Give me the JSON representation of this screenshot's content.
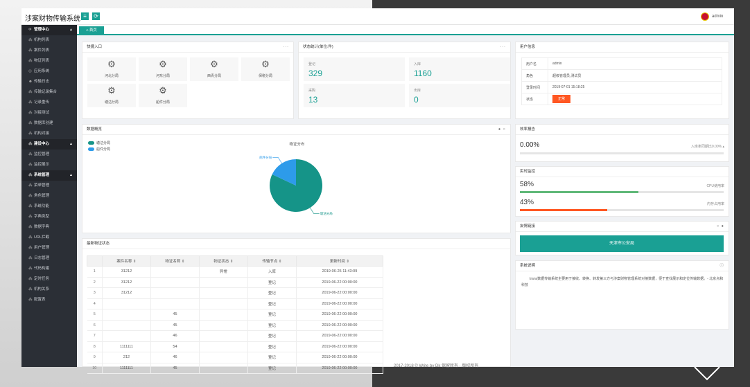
{
  "app": {
    "title": "涉案财物传输系统",
    "user": "admin"
  },
  "topbar": {
    "menu_icon": "≡",
    "refresh_icon": "⟳"
  },
  "sidebar": {
    "items": [
      {
        "label": "管理中心",
        "group": true,
        "icon": "✈"
      },
      {
        "label": "机构列表",
        "icon": "⁂"
      },
      {
        "label": "案件列表",
        "icon": "⁂"
      },
      {
        "label": "物证列表",
        "icon": "⁂"
      },
      {
        "label": "应用系统",
        "icon": "◎"
      },
      {
        "label": "传输日志",
        "icon": "☻"
      },
      {
        "label": "传输记录集合",
        "icon": "⁂"
      },
      {
        "label": "记录重传",
        "icon": "⁂"
      },
      {
        "label": "对接测试",
        "icon": "⁂"
      },
      {
        "label": "数据库创建",
        "icon": "⁂"
      },
      {
        "label": "机构对接",
        "icon": "⁂"
      },
      {
        "label": "建设中心",
        "group": true,
        "icon": "⁂"
      },
      {
        "label": "监控管理",
        "icon": "⁂"
      },
      {
        "label": "监控展示",
        "icon": "⁂"
      },
      {
        "label": "系统管理",
        "group": true,
        "icon": "⁂"
      },
      {
        "label": "菜单管理",
        "icon": "⁂"
      },
      {
        "label": "角色管理",
        "icon": "⁂"
      },
      {
        "label": "系统功能",
        "icon": "⁂"
      },
      {
        "label": "字典类型",
        "icon": "⁂"
      },
      {
        "label": "数据字典",
        "icon": "⁂"
      },
      {
        "label": "URL拦截",
        "icon": "⁂"
      },
      {
        "label": "用户管理",
        "icon": "⁂"
      },
      {
        "label": "日志管理",
        "icon": "⁂"
      },
      {
        "label": "代码构建",
        "icon": "⁂"
      },
      {
        "label": "定时任务",
        "icon": "⁂"
      },
      {
        "label": "机构关系",
        "icon": "⁂"
      },
      {
        "label": "配置表",
        "icon": "⁂"
      }
    ]
  },
  "tabs": [
    {
      "label": "首页",
      "icon": "⌂"
    }
  ],
  "quick": {
    "title": "快捷入口",
    "items": [
      {
        "label": "河北分局"
      },
      {
        "label": "河东分局"
      },
      {
        "label": "西青分局"
      },
      {
        "label": "保税分局"
      },
      {
        "label": "塘沽分局"
      },
      {
        "label": "船件分局"
      }
    ]
  },
  "stats": {
    "title": "状态统计(单位:件)",
    "items": [
      {
        "label": "登记",
        "value": "329"
      },
      {
        "label": "入库",
        "value": "1160"
      },
      {
        "label": "采购",
        "value": "13"
      },
      {
        "label": "出库",
        "value": "0"
      }
    ]
  },
  "userinfo": {
    "title": "用户信息",
    "rows": [
      {
        "k": "用户名",
        "v": "admin"
      },
      {
        "k": "角色",
        "v": "超级管理员,测试员"
      },
      {
        "k": "登录时间",
        "v": "2019-07-01 15:18:25"
      },
      {
        "k": "状态",
        "v": "正常"
      }
    ]
  },
  "overview": {
    "title": "数据概览",
    "chart_title": "物证分布",
    "legend": [
      {
        "name": "塘沽分局",
        "color": "#159488"
      },
      {
        "name": "船件分局",
        "color": "#2d9bea"
      }
    ]
  },
  "chart_data": {
    "type": "pie",
    "title": "物证分布",
    "categories": [
      "塘沽分局",
      "船件分局"
    ],
    "values": [
      82,
      18
    ],
    "colors": [
      "#159488",
      "#2d9bea"
    ],
    "legend": "top-left"
  },
  "efficiency": {
    "title": "效率报告",
    "value": "0.00%",
    "label": "入库率同期比0.00% ▴",
    "percent": 0
  },
  "monitor": {
    "title": "实时监控",
    "cpu": {
      "value": "58%",
      "label": "CPU使用率",
      "percent": 58,
      "color": "#5fb878"
    },
    "mem": {
      "value": "43%",
      "label": "内存占用率",
      "percent": 43,
      "color": "#ff5722"
    }
  },
  "links": {
    "title": "友情链接",
    "button": "天津市公安局"
  },
  "system": {
    "title": "系统说明",
    "text": "trans数据传输系统主要用于接收、转换、转发第三方与涉案财物管理系统对接数据，便于查找展示和定位传输数据。- 北京点和科技"
  },
  "recent": {
    "title": "最新物证状态",
    "columns": [
      "",
      "案件名称 ⇕",
      "物证名称 ⇕",
      "物证状态 ⇕",
      "传输节点 ⇕",
      "更新时间 ⇕"
    ],
    "rows": [
      [
        "1",
        "31212",
        "",
        "异常",
        "入库",
        "2019-06-25 11:43:09"
      ],
      [
        "2",
        "31212",
        "",
        "",
        "登记",
        "2019-06-22 00:00:00"
      ],
      [
        "3",
        "31212",
        "",
        "",
        "登记",
        "2019-06-22 00:00:00"
      ],
      [
        "4",
        "",
        "",
        "",
        "登记",
        "2019-06-22 00:00:00"
      ],
      [
        "5",
        "",
        "45",
        "",
        "登记",
        "2019-06-22 00:00:00"
      ],
      [
        "6",
        "",
        "45",
        "",
        "登记",
        "2019-06-22 00:00:00"
      ],
      [
        "7",
        "",
        "46",
        "",
        "登记",
        "2019-06-22 00:00:00"
      ],
      [
        "8",
        "1111111",
        "54",
        "",
        "登记",
        "2019-06-22 00:00:00"
      ],
      [
        "9",
        "212",
        "46",
        "",
        "登记",
        "2019-06-22 00:00:00"
      ],
      [
        "10",
        "1111111",
        "45",
        "",
        "登记",
        "2019-06-22 00:00:00"
      ]
    ]
  },
  "footer": "2017-2018 © Write by Dk 保留所有 · 版权所有"
}
